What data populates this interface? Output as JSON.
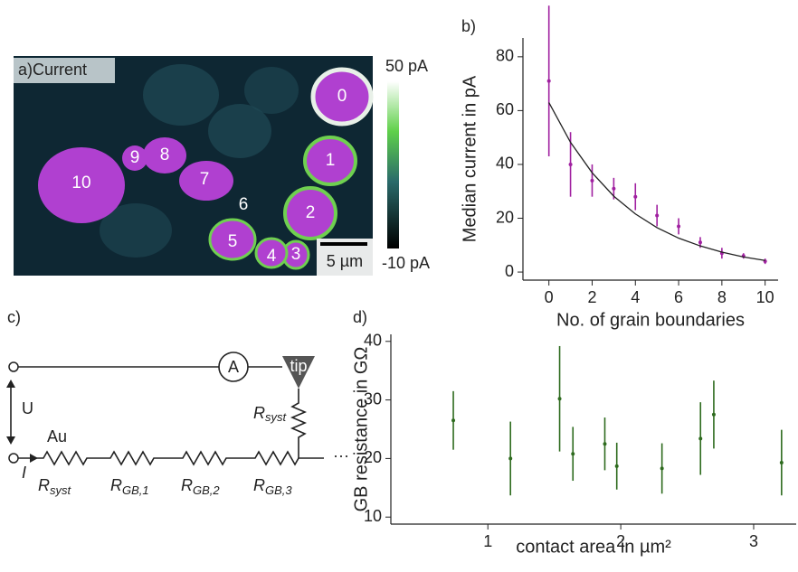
{
  "panel_a": {
    "label": "a)Current",
    "colorbar_max": "50 pA",
    "colorbar_min": "-10 pA",
    "scale_bar": "5 µm",
    "grains": [
      "0",
      "1",
      "2",
      "3",
      "4",
      "5",
      "6",
      "7",
      "8",
      "9",
      "10"
    ]
  },
  "panel_c": {
    "label": "c)",
    "voltage": "U",
    "current": "I",
    "ammeter": "A",
    "tip": "tip",
    "electrode": "Au",
    "ellipsis": "···",
    "tip_resistor": {
      "symbol": "R",
      "subscript": "syst"
    },
    "resistors": [
      {
        "symbol": "R",
        "subscript": "syst"
      },
      {
        "symbol": "R",
        "subscript": "GB,1"
      },
      {
        "symbol": "R",
        "subscript": "GB,2"
      },
      {
        "symbol": "R",
        "subscript": "GB,3"
      }
    ]
  },
  "chart_data": [
    {
      "type": "scatter",
      "label": "b)",
      "x_label": "No. of grain boundaries",
      "y_label": "Median current in pA",
      "x": [
        0,
        1,
        2,
        3,
        4,
        5,
        6,
        7,
        8,
        9,
        10
      ],
      "series": [
        {
          "kind": "errorbar",
          "color": "#a020a0",
          "values": [
            71,
            40,
            34,
            31,
            28,
            21,
            17,
            11,
            7,
            6,
            4
          ],
          "errors": [
            28,
            12,
            6,
            4,
            5,
            4,
            3,
            2,
            2,
            1,
            1
          ]
        },
        {
          "kind": "line",
          "color": "#222222",
          "values": [
            63,
            48.2,
            36.9,
            28.2,
            21.6,
            16.5,
            12.6,
            9.7,
            7.4,
            5.6,
            4.3
          ]
        }
      ],
      "xlim": [
        -1.2,
        10.6
      ],
      "ylim": [
        -3,
        87
      ],
      "xticks": [
        0,
        2,
        4,
        6,
        8,
        10
      ],
      "yticks": [
        0,
        20,
        40,
        60,
        80
      ]
    },
    {
      "type": "scatter",
      "label": "d)",
      "x_label": "contact area in µm²",
      "y_label": "GB resistance in GΩ",
      "x": [
        0.74,
        1.17,
        1.54,
        1.64,
        1.88,
        1.97,
        2.31,
        2.6,
        2.7,
        3.21
      ],
      "series": [
        {
          "kind": "errorbar",
          "color": "#2e6b1e",
          "values": [
            26.5,
            20,
            30.2,
            20.8,
            22.5,
            18.7,
            18.3,
            23.4,
            27.5,
            19.3
          ],
          "errors": [
            5,
            6.3,
            9,
            4.6,
            4.5,
            4,
            4.3,
            6.2,
            5.8,
            5.6
          ]
        }
      ],
      "xlim": [
        0.27,
        3.32
      ],
      "ylim": [
        8.8,
        41.2
      ],
      "xticks": [
        1,
        2,
        3
      ],
      "yticks": [
        10,
        20,
        30,
        40
      ]
    }
  ]
}
